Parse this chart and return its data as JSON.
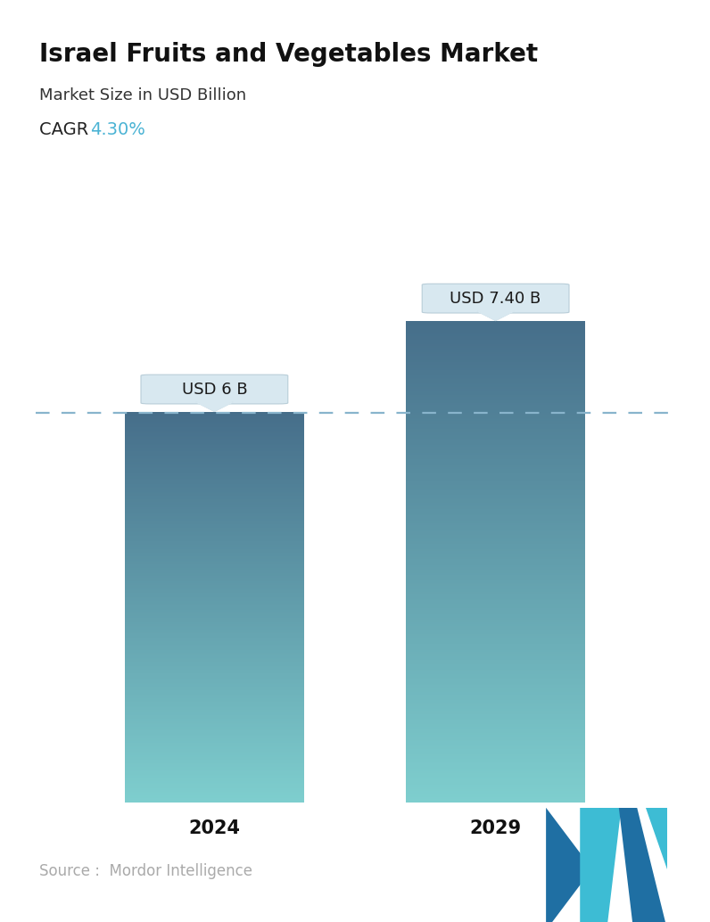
{
  "title": "Israel Fruits and Vegetables Market",
  "subtitle": "Market Size in USD Billion",
  "cagr_label": "CAGR  ",
  "cagr_value": "4.30%",
  "cagr_color": "#4ab3d4",
  "categories": [
    "2024",
    "2029"
  ],
  "values": [
    6.0,
    7.4
  ],
  "bar_labels": [
    "USD 6 B",
    "USD 7.40 B"
  ],
  "bar_color_top": "#466e8a",
  "bar_color_bottom": "#7ecece",
  "dashed_line_color": "#88b4cc",
  "tooltip_bg": "#d8e8f0",
  "tooltip_border": "#b8cdd8",
  "tooltip_text_color": "#1a1a1a",
  "source_text": "Source :  Mordor Intelligence",
  "source_color": "#aaaaaa",
  "background_color": "#ffffff",
  "title_fontsize": 20,
  "subtitle_fontsize": 13,
  "cagr_fontsize": 14,
  "bar_label_fontsize": 13,
  "xtick_fontsize": 15,
  "source_fontsize": 12,
  "ylim": [
    0,
    9.8
  ],
  "bar_width": 0.28,
  "x_positions": [
    0.28,
    0.72
  ]
}
